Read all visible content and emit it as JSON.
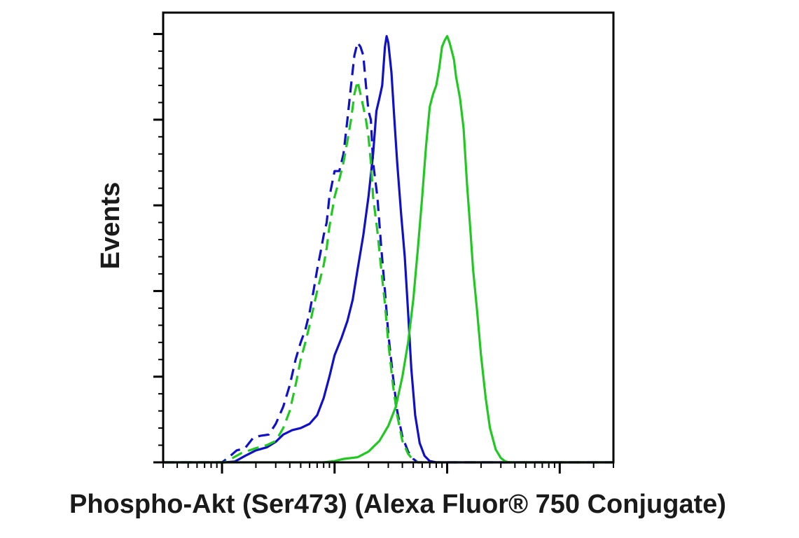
{
  "chart_data": {
    "type": "line",
    "title": "",
    "xlabel": "Phospho-Akt (Ser473) (Alexa Fluor® 750 Conjugate)",
    "ylabel": "Events",
    "x_scale": "log",
    "xlim": [
      0.3,
      3000
    ],
    "ylim": [
      0,
      105
    ],
    "x_major_ticks": [
      1,
      10,
      100,
      1000
    ],
    "y_major_ticks": [
      0,
      20,
      40,
      60,
      80,
      100
    ],
    "tick_labels_shown": false,
    "grid": false,
    "legend": "none",
    "series": [
      {
        "color": "#1010c8",
        "style": "solid",
        "points": [
          [
            0.3,
            0
          ],
          [
            1.05,
            0
          ],
          [
            1.3,
            0.2
          ],
          [
            1.6,
            1.5
          ],
          [
            2.0,
            2.8
          ],
          [
            2.5,
            3.5
          ],
          [
            3.0,
            4.8
          ],
          [
            3.5,
            6.5
          ],
          [
            4.2,
            7.5
          ],
          [
            5.0,
            8
          ],
          [
            6.0,
            9
          ],
          [
            7.0,
            11
          ],
          [
            8.0,
            15
          ],
          [
            9.0,
            20
          ],
          [
            10.0,
            25
          ],
          [
            11.5,
            29
          ],
          [
            13.0,
            33
          ],
          [
            14.5,
            38
          ],
          [
            16.0,
            45
          ],
          [
            18.0,
            53
          ],
          [
            20.0,
            62
          ],
          [
            22.0,
            72
          ],
          [
            23.5,
            82
          ],
          [
            25.0,
            85
          ],
          [
            26.5,
            88
          ],
          [
            28.0,
            97
          ],
          [
            29.0,
            99.5
          ],
          [
            30.0,
            98
          ],
          [
            32.0,
            91
          ],
          [
            34.0,
            80
          ],
          [
            36.0,
            70
          ],
          [
            39.0,
            58
          ],
          [
            42.0,
            48
          ],
          [
            45.0,
            35
          ],
          [
            48.0,
            22
          ],
          [
            52.0,
            11
          ],
          [
            57.0,
            4.5
          ],
          [
            63.0,
            1.5
          ],
          [
            70.0,
            0.3
          ],
          [
            80.0,
            0
          ],
          [
            3000,
            0
          ]
        ]
      },
      {
        "color": "#1010c8",
        "style": "dashed",
        "points": [
          [
            0.3,
            0
          ],
          [
            1.0,
            0
          ],
          [
            1.15,
            1.2
          ],
          [
            1.35,
            2.8
          ],
          [
            1.6,
            3.3
          ],
          [
            1.9,
            5.8
          ],
          [
            2.2,
            6.2
          ],
          [
            2.6,
            6.5
          ],
          [
            3.0,
            9
          ],
          [
            3.5,
            13
          ],
          [
            4.0,
            18
          ],
          [
            4.5,
            24
          ],
          [
            5.0,
            28
          ],
          [
            5.5,
            31
          ],
          [
            6.0,
            35
          ],
          [
            6.5,
            40
          ],
          [
            7.0,
            45
          ],
          [
            7.5,
            49
          ],
          [
            8.0,
            53
          ],
          [
            8.5,
            56
          ],
          [
            9.0,
            62
          ],
          [
            10.0,
            68
          ],
          [
            11.0,
            68
          ],
          [
            12.0,
            72
          ],
          [
            13.0,
            80
          ],
          [
            14.0,
            88
          ],
          [
            15.0,
            95
          ],
          [
            16.0,
            98
          ],
          [
            17.0,
            97
          ],
          [
            18.0,
            95
          ],
          [
            19.0,
            88
          ],
          [
            20.0,
            82
          ],
          [
            21.0,
            80
          ],
          [
            22.0,
            70
          ],
          [
            24.0,
            62
          ],
          [
            26.0,
            50
          ],
          [
            28.0,
            40
          ],
          [
            30.0,
            30
          ],
          [
            33.0,
            20
          ],
          [
            36.0,
            12
          ],
          [
            40.0,
            6
          ],
          [
            45.0,
            2.5
          ],
          [
            50.0,
            0.8
          ],
          [
            55.0,
            0
          ],
          [
            3000,
            0
          ]
        ]
      },
      {
        "color": "#22c822",
        "style": "dashed",
        "points": [
          [
            0.3,
            0
          ],
          [
            1.05,
            0
          ],
          [
            1.2,
            0.8
          ],
          [
            1.5,
            2.2
          ],
          [
            2.0,
            3.3
          ],
          [
            2.5,
            4
          ],
          [
            3.0,
            5
          ],
          [
            3.5,
            8
          ],
          [
            4.0,
            12
          ],
          [
            4.5,
            18
          ],
          [
            5.0,
            24
          ],
          [
            5.5,
            28
          ],
          [
            6.0,
            32
          ],
          [
            7.0,
            40
          ],
          [
            8.0,
            46
          ],
          [
            8.5,
            50
          ],
          [
            9.0,
            55
          ],
          [
            10.0,
            62
          ],
          [
            11.0,
            66
          ],
          [
            12.0,
            70
          ],
          [
            13.0,
            75
          ],
          [
            14.0,
            80
          ],
          [
            15.0,
            86
          ],
          [
            16.0,
            89
          ],
          [
            17.0,
            86
          ],
          [
            18.0,
            83
          ],
          [
            19.0,
            80
          ],
          [
            20.0,
            76
          ],
          [
            21.0,
            70
          ],
          [
            22.0,
            62
          ],
          [
            24.0,
            54
          ],
          [
            26.0,
            45
          ],
          [
            28.0,
            37
          ],
          [
            30.0,
            28
          ],
          [
            33.0,
            18
          ],
          [
            36.0,
            11
          ],
          [
            40.0,
            5
          ],
          [
            45.0,
            2
          ],
          [
            50.0,
            0.5
          ],
          [
            55.0,
            0
          ],
          [
            3000,
            0
          ]
        ]
      },
      {
        "color": "#22c822",
        "style": "solid",
        "points": [
          [
            0.3,
            0
          ],
          [
            8.0,
            0
          ],
          [
            10.0,
            0.3
          ],
          [
            12.0,
            0.8
          ],
          [
            16.0,
            1.2
          ],
          [
            20.0,
            2.5
          ],
          [
            25.0,
            5
          ],
          [
            30.0,
            8.5
          ],
          [
            35.0,
            13
          ],
          [
            40.0,
            20
          ],
          [
            45.0,
            28
          ],
          [
            50.0,
            38
          ],
          [
            55.0,
            50
          ],
          [
            60.0,
            62
          ],
          [
            65.0,
            74
          ],
          [
            70.0,
            83
          ],
          [
            75.0,
            86
          ],
          [
            80.0,
            88
          ],
          [
            85.0,
            92
          ],
          [
            90.0,
            97
          ],
          [
            95.0,
            98.5
          ],
          [
            100.0,
            99.5
          ],
          [
            105.0,
            98
          ],
          [
            110.0,
            96
          ],
          [
            115.0,
            94
          ],
          [
            120.0,
            90
          ],
          [
            130.0,
            85
          ],
          [
            140.0,
            78
          ],
          [
            150.0,
            65
          ],
          [
            160.0,
            55
          ],
          [
            170.0,
            45
          ],
          [
            185.0,
            35
          ],
          [
            200.0,
            25
          ],
          [
            220.0,
            15
          ],
          [
            240.0,
            8
          ],
          [
            270.0,
            3
          ],
          [
            300.0,
            1
          ],
          [
            330.0,
            0.2
          ],
          [
            360.0,
            0
          ],
          [
            3000,
            0
          ]
        ]
      }
    ]
  }
}
